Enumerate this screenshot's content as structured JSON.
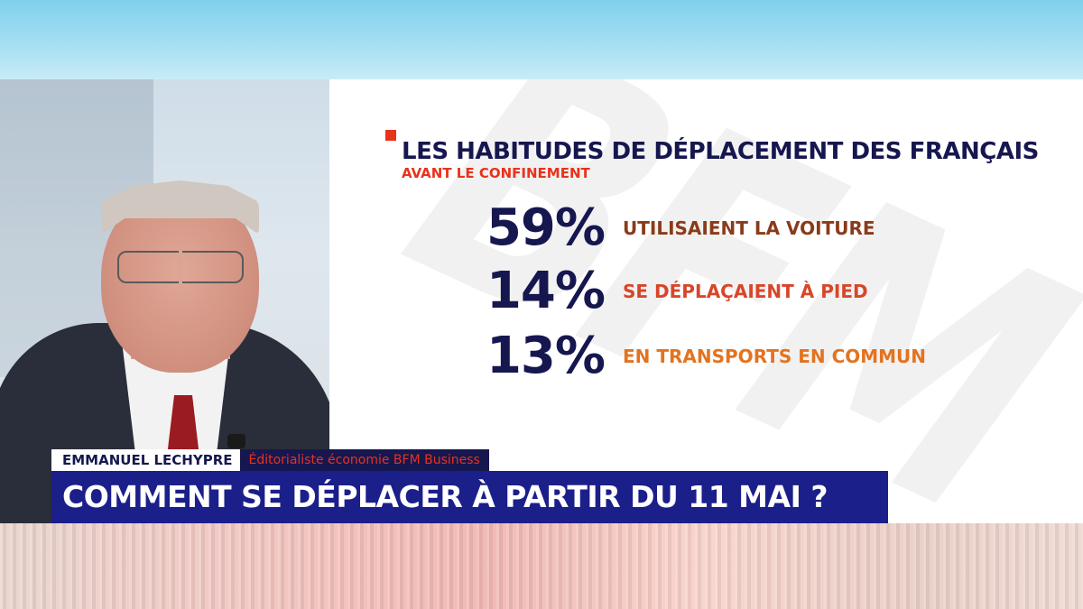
{
  "graphic": {
    "headline": "LES HABITUDES DE DÉPLACEMENT DES FRANÇAIS",
    "subheadline": "AVANT LE CONFINEMENT",
    "watermark": "BFM",
    "stats": [
      {
        "value": "59%",
        "label": "UTILISAIENT LA VOITURE",
        "label_color": "#8a3b1a"
      },
      {
        "value": "14%",
        "label": "SE DÉPLAÇAIENT À PIED",
        "label_color": "#d8462a"
      },
      {
        "value": "13%",
        "label": "EN TRANSPORTS EN COMMUN",
        "label_color": "#e3731f"
      }
    ]
  },
  "lower_third": {
    "speaker_name": "EMMANUEL LECHYPRE",
    "speaker_role": "Éditorialiste économie BFM Business",
    "title": "COMMENT SE DÉPLACER À PARTIR DU 11 MAI ?"
  },
  "colors": {
    "navy": "#16174f",
    "accent_red": "#e8321c",
    "title_bar": "#1b1f8a"
  }
}
